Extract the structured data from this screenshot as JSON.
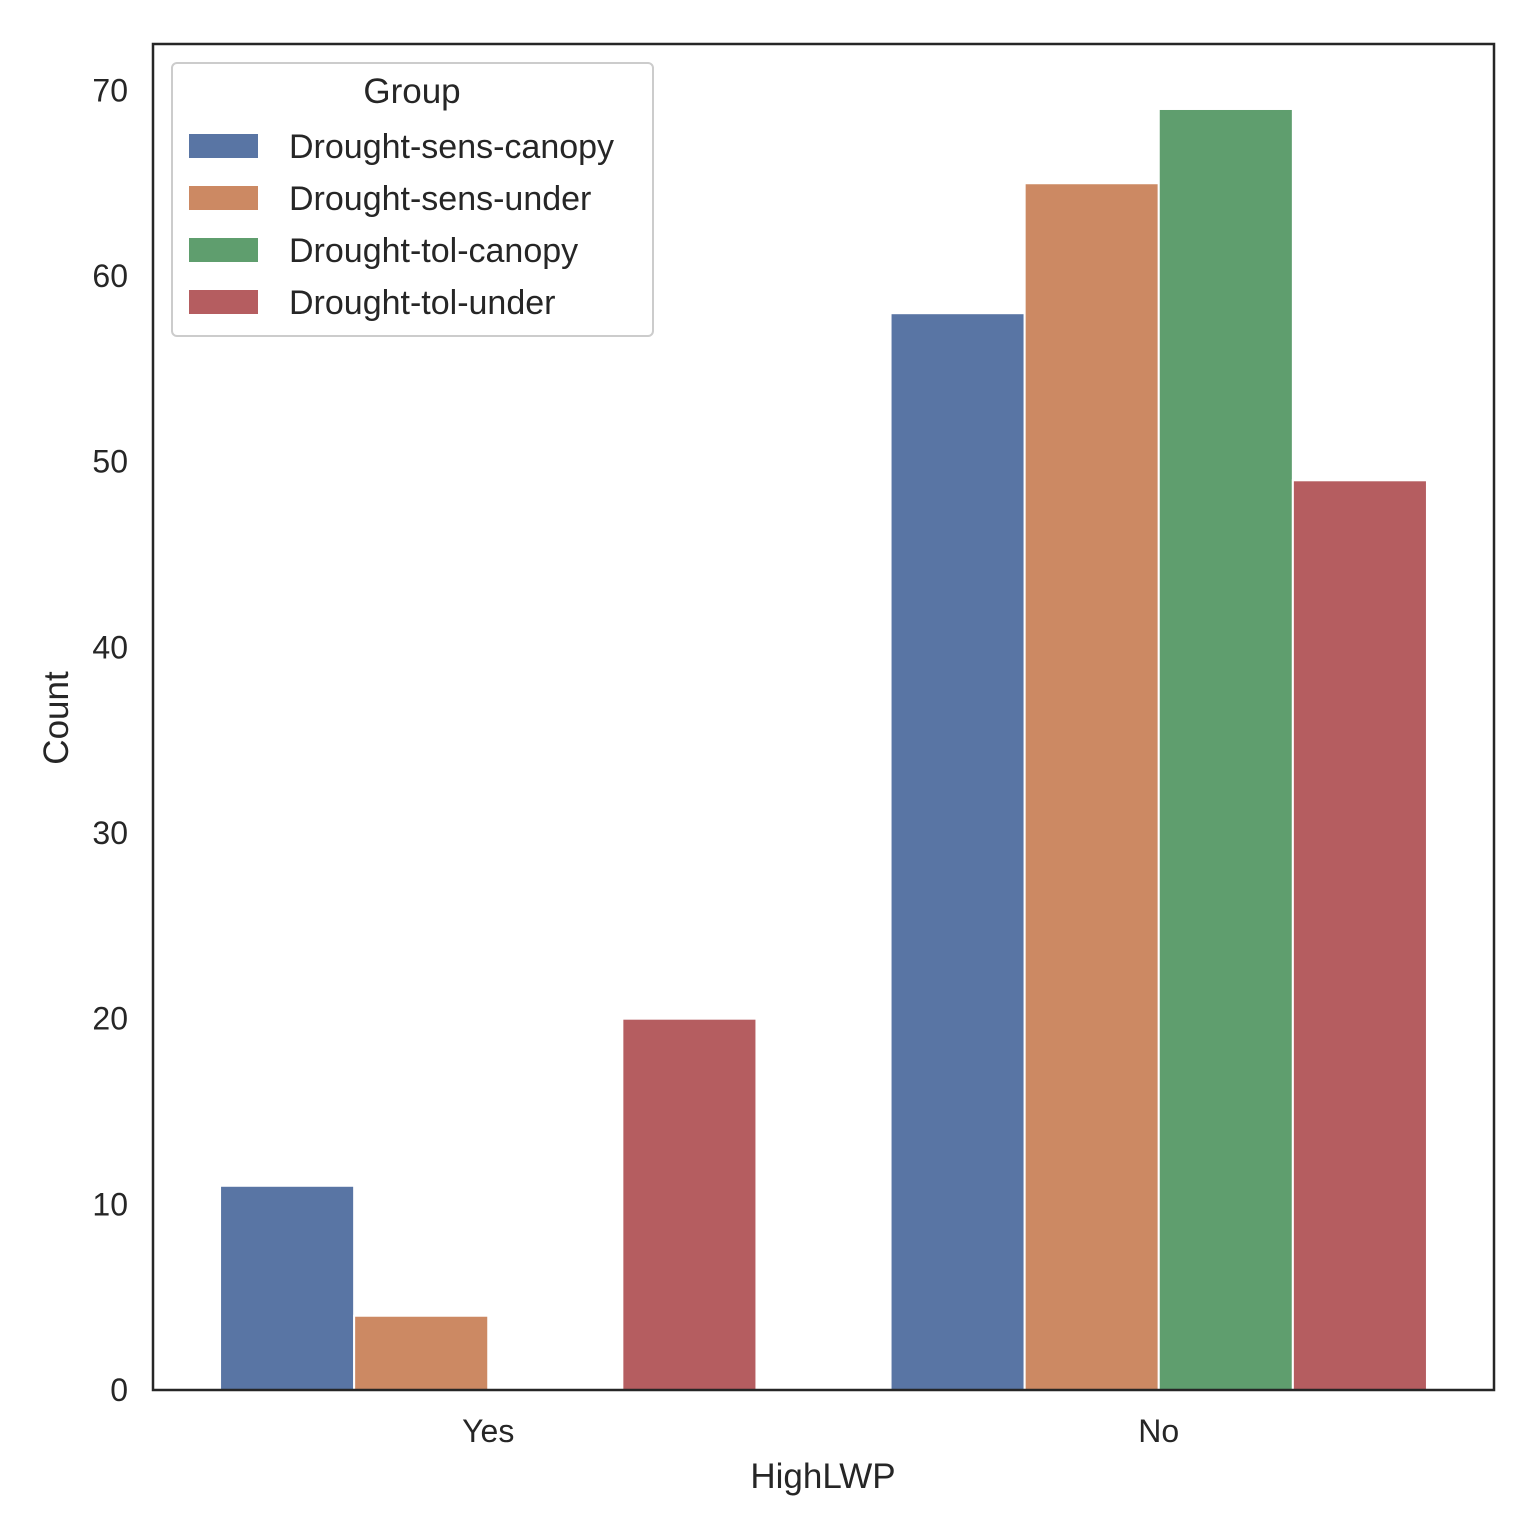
{
  "chart_data": {
    "type": "bar",
    "title": "",
    "xlabel": "HighLWP",
    "ylabel": "Count",
    "categories": [
      "Yes",
      "No"
    ],
    "ylim": [
      0,
      72.5
    ],
    "yticks": [
      0,
      10,
      20,
      30,
      40,
      50,
      60,
      70
    ],
    "grid": false,
    "legend": {
      "title": "Group",
      "position": "top-left"
    },
    "series": [
      {
        "name": "Drought-sens-canopy",
        "color": "#5975a4",
        "values": [
          11,
          58
        ]
      },
      {
        "name": "Drought-sens-under",
        "color": "#cc8963",
        "values": [
          4,
          65
        ]
      },
      {
        "name": "Drought-tol-canopy",
        "color": "#5f9e6e",
        "values": [
          0,
          69
        ]
      },
      {
        "name": "Drought-tol-under",
        "color": "#b55d60",
        "values": [
          20,
          49
        ]
      }
    ]
  }
}
